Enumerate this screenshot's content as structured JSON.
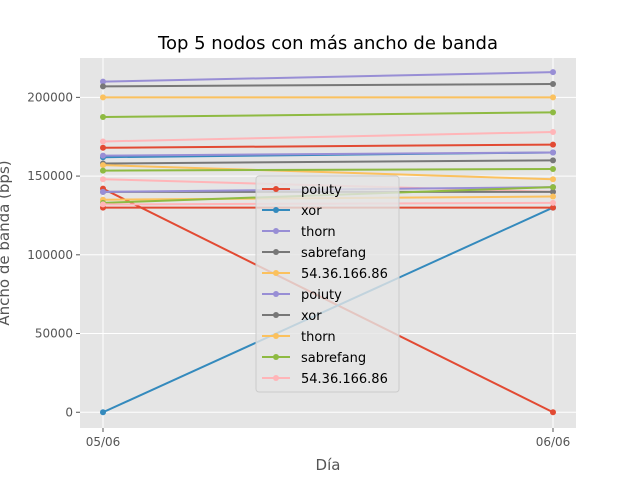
{
  "chart_data": {
    "type": "line",
    "title": "Top 5 nodos con más ancho de banda",
    "xlabel": "Día",
    "ylabel": "Ancho de banda (bps)",
    "x": [
      "05/06",
      "06/06"
    ],
    "ylim": [
      -10000,
      225000
    ],
    "yticks": [
      0,
      50000,
      100000,
      150000,
      200000
    ],
    "ytick_labels": [
      "0",
      "50000",
      "100000",
      "150000",
      "200000"
    ],
    "grid": true,
    "legend_position": "lower-center",
    "legend": [
      {
        "name": "poiuty",
        "color": "#E24A33"
      },
      {
        "name": "xor",
        "color": "#348ABD"
      },
      {
        "name": "thorn",
        "color": "#988ED5"
      },
      {
        "name": "sabrefang",
        "color": "#777777"
      },
      {
        "name": "54.36.166.86",
        "color": "#FBC15E"
      },
      {
        "name": "poiuty",
        "color": "#988ED5"
      },
      {
        "name": "xor",
        "color": "#777777"
      },
      {
        "name": "thorn",
        "color": "#FBC15E"
      },
      {
        "name": "sabrefang",
        "color": "#8EBA42"
      },
      {
        "name": "54.36.166.86",
        "color": "#FFB5B8"
      }
    ],
    "series": [
      {
        "color": "#E24A33",
        "values": [
          142000,
          0
        ]
      },
      {
        "color": "#348ABD",
        "values": [
          0,
          130000
        ]
      },
      {
        "color": "#E24A33",
        "values": [
          130000,
          130000
        ]
      },
      {
        "color": "#E24A33",
        "values": [
          168000,
          170000
        ]
      },
      {
        "color": "#348ABD",
        "values": [
          162000,
          165000
        ]
      },
      {
        "color": "#988ED5",
        "values": [
          210000,
          216000
        ]
      },
      {
        "color": "#777777",
        "values": [
          207000,
          208500
        ]
      },
      {
        "color": "#FBC15E",
        "values": [
          200000,
          200000
        ]
      },
      {
        "color": "#8EBA42",
        "values": [
          187500,
          190500
        ]
      },
      {
        "color": "#FFB5B8",
        "values": [
          172000,
          178000
        ]
      },
      {
        "color": "#988ED5",
        "values": [
          163000,
          165000
        ]
      },
      {
        "color": "#777777",
        "values": [
          158000,
          160000
        ]
      },
      {
        "color": "#FBC15E",
        "values": [
          157000,
          148000
        ]
      },
      {
        "color": "#8EBA42",
        "values": [
          153500,
          154500
        ]
      },
      {
        "color": "#FFB5B8",
        "values": [
          148000,
          140000
        ]
      },
      {
        "color": "#777777",
        "values": [
          140000,
          140000
        ]
      },
      {
        "color": "#988ED5",
        "values": [
          140000,
          143000
        ]
      },
      {
        "color": "#FBC15E",
        "values": [
          135000,
          137000
        ]
      },
      {
        "color": "#8EBA42",
        "values": [
          133000,
          143000
        ]
      },
      {
        "color": "#FFB5B8",
        "values": [
          132000,
          133000
        ]
      }
    ]
  }
}
